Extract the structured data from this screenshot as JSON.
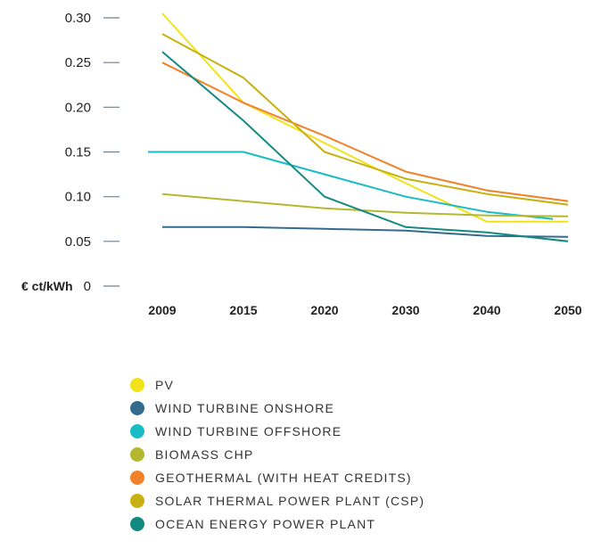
{
  "chart_data": {
    "type": "line",
    "ylabel_bold": "€ ct/kWh",
    "categories": [
      "2009",
      "2015",
      "2020",
      "2030",
      "2040",
      "2050"
    ],
    "yticks": [
      "0.30",
      "0.25",
      "0.20",
      "0.15",
      "0.10",
      "0.05",
      "0"
    ],
    "ylim": [
      0,
      0.3
    ],
    "grid": false,
    "legend_position": "bottom",
    "series": [
      {
        "name": "PV",
        "color": "#f2e21a",
        "values": [
          0.305,
          0.205,
          0.16,
          0.115,
          0.072,
          0.072
        ]
      },
      {
        "name": "WIND TURBINE ONSHORE",
        "color": "#336b8f",
        "values": [
          0.066,
          0.066,
          0.064,
          0.062,
          0.056,
          0.055
        ]
      },
      {
        "name": "WIND TURBINE OFFSHORE",
        "color": "#19bcc4",
        "values": [
          0.15,
          0.15,
          0.125,
          0.1,
          0.083,
          0.075
        ]
      },
      {
        "name": "BIOMASS CHP",
        "color": "#b3b82e",
        "values": [
          0.103,
          0.095,
          0.087,
          0.082,
          0.079,
          0.078
        ]
      },
      {
        "name": "GEOTHERMAL (WITH HEAT CREDITS)",
        "color": "#f0822a",
        "values": [
          0.25,
          0.205,
          0.168,
          0.128,
          0.107,
          0.095
        ]
      },
      {
        "name": "SOLAR THERMAL POWER PLANT (CSP)",
        "color": "#c8b010",
        "values": [
          0.282,
          0.233,
          0.15,
          0.12,
          0.103,
          0.091
        ]
      },
      {
        "name": "OCEAN ENERGY POWER PLANT",
        "color": "#138a80",
        "values": [
          0.262,
          0.185,
          0.1,
          0.066,
          0.06,
          0.05
        ]
      }
    ]
  }
}
